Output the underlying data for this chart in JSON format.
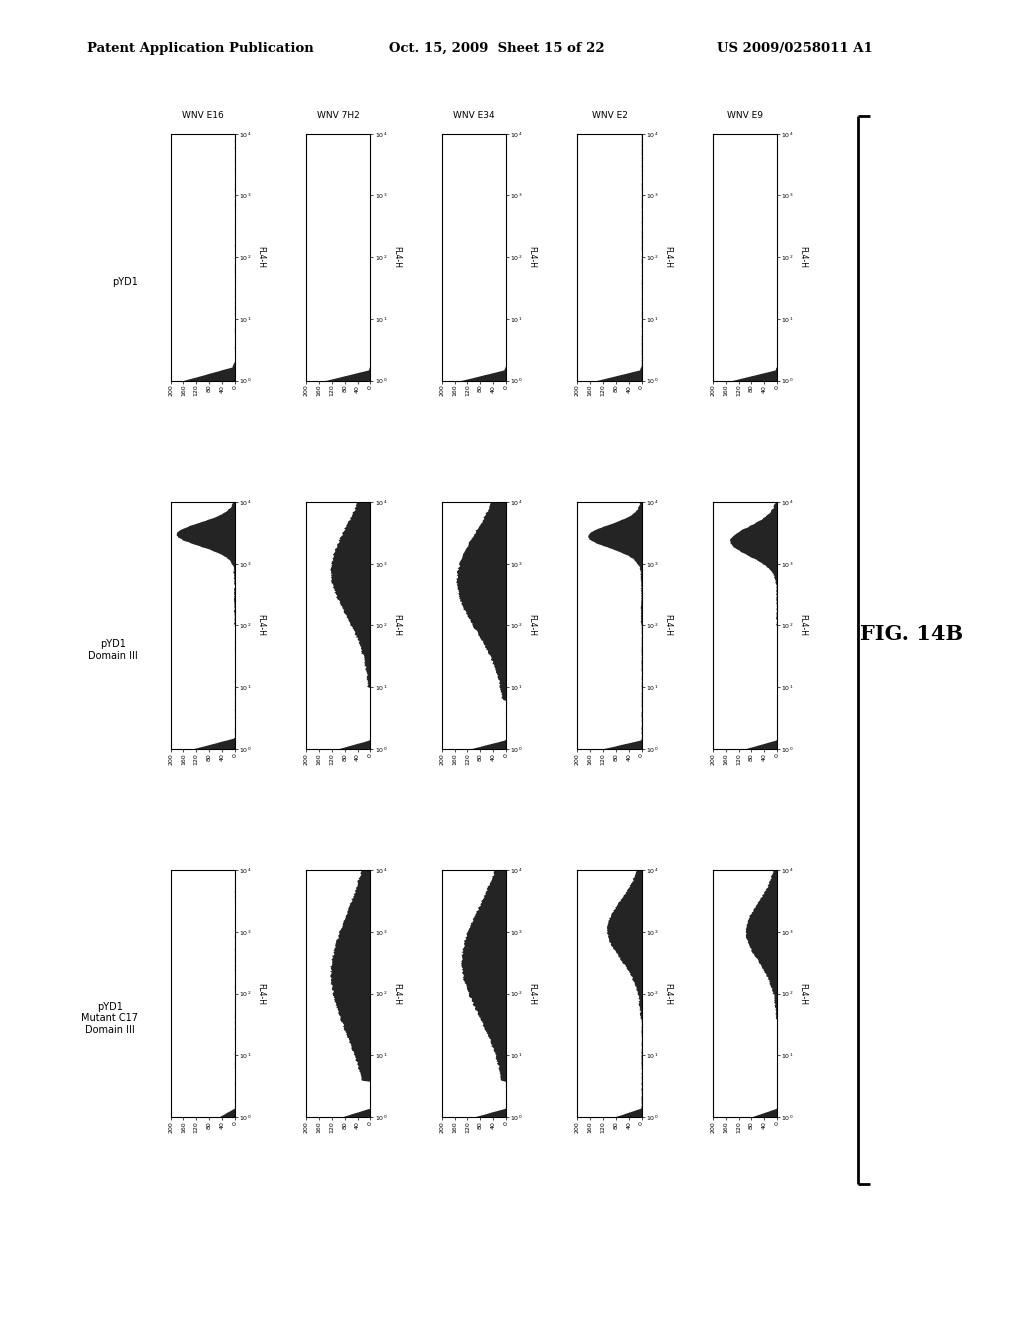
{
  "header_left": "Patent Application Publication",
  "header_mid": "Oct. 15, 2009  Sheet 15 of 22",
  "header_right": "US 2009/0258011 A1",
  "figure_label": "FIG. 14B",
  "col_labels": [
    "WNV E16",
    "WNV 7H2",
    "WNV E34",
    "WNV E2",
    "WNV E9"
  ],
  "row_labels": [
    "pYD1",
    "pYD1\nDomain III",
    "pYD1\nMutant C17\nDomain III"
  ],
  "ytick_vals": [
    0,
    40,
    80,
    120,
    160,
    200
  ],
  "xtick_labels": [
    "10⁰",
    "10¹",
    "10²",
    "10³",
    "10⁴"
  ],
  "background_color": "#ffffff",
  "hist_color": "#111111",
  "profiles": {
    "r0c0": "spike_left_flat",
    "r0c1": "spike_left_tiny",
    "r0c2": "spike_left_tiny",
    "r0c3": "spike_left_tiny",
    "r0c4": "spike_left_tiny",
    "r1c0": "tall_right_sharp",
    "r1c1": "broad_hump_mid",
    "r1c2": "broad_hump_mid2",
    "r1c3": "tall_right_sharp2",
    "r1c4": "tall_right_sharp3",
    "r2c0": "flat_nearly",
    "r2c1": "broad_flat_mid",
    "r2c2": "broad_flat_mid2",
    "r2c3": "small_hump_right",
    "r2c4": "small_hump_right2"
  }
}
